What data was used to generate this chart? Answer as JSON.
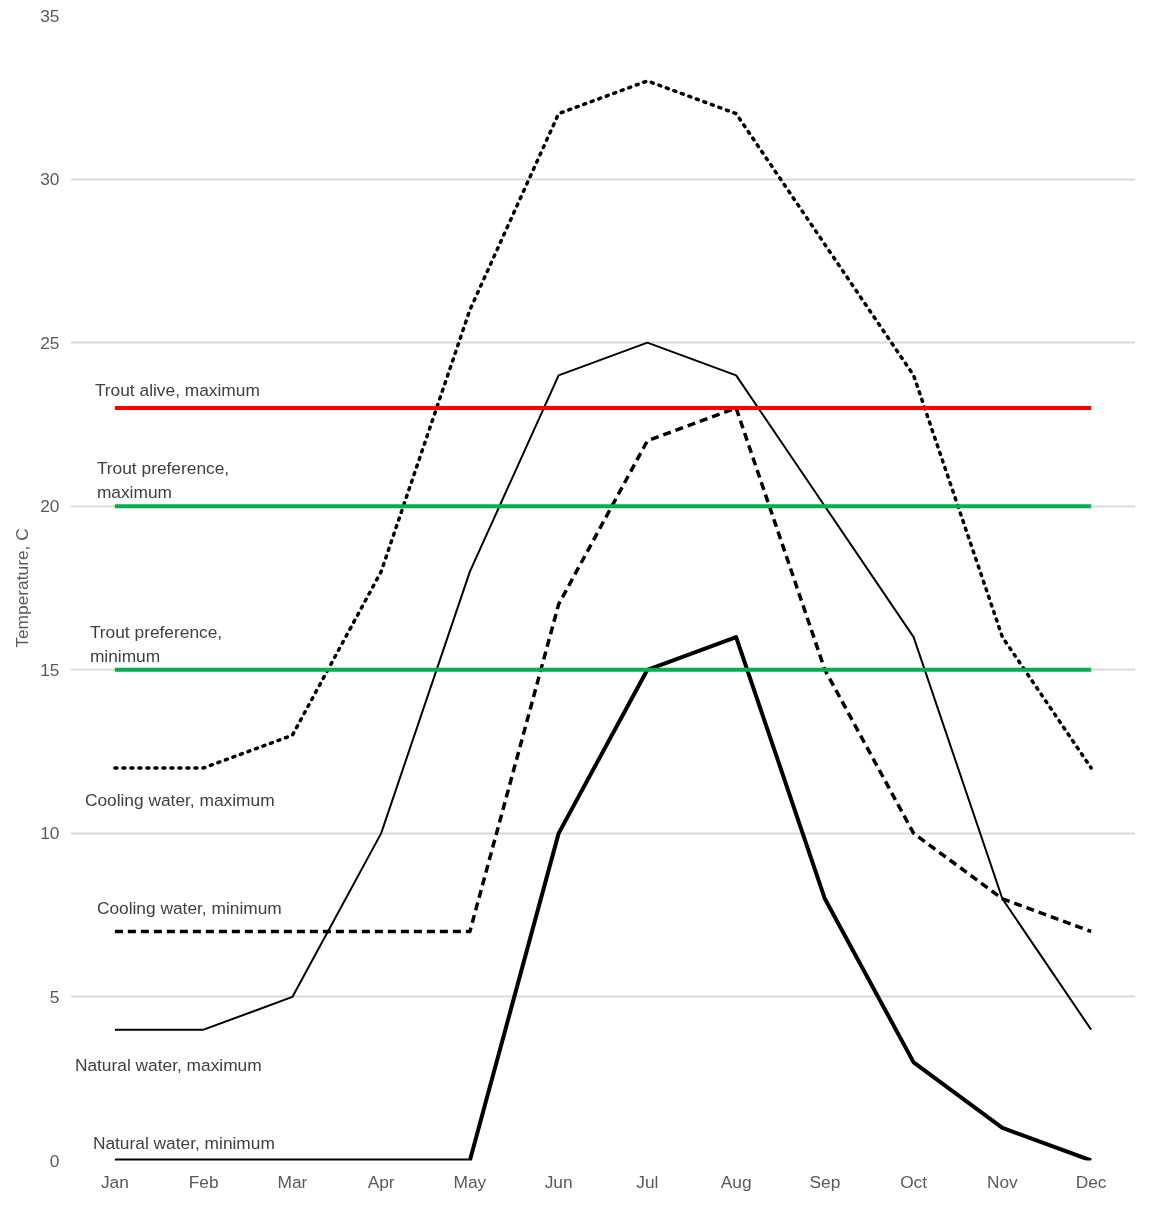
{
  "chart_data": {
    "type": "line",
    "ylabel": "Temperature, C",
    "categories": [
      "Jan",
      "Feb",
      "Mar",
      "Apr",
      "May",
      "Jun",
      "Jul",
      "Aug",
      "Sep",
      "Oct",
      "Nov",
      "Dec"
    ],
    "ylim": [
      0,
      35
    ],
    "yticks": [
      0,
      5,
      10,
      15,
      20,
      25,
      30,
      35
    ],
    "grid": "y",
    "series": [
      {
        "name": "Cooling water, maximum",
        "color": "#000000",
        "line_style": "dotted",
        "values": [
          12,
          12,
          13,
          18,
          26,
          32,
          33,
          32,
          28,
          24,
          16,
          12
        ]
      },
      {
        "name": "Natural water, maximum",
        "color": "#000000",
        "line_style": "solid",
        "values": [
          4,
          4,
          5,
          10,
          18,
          24,
          25,
          24,
          20,
          16,
          8,
          4
        ]
      },
      {
        "name": "Cooling water, minimum",
        "color": "#000000",
        "line_style": "dashed",
        "values": [
          7,
          7,
          7,
          7,
          7,
          17,
          22,
          23,
          15,
          10,
          8,
          7
        ]
      },
      {
        "name": "Natural water, minimum",
        "color": "#000000",
        "line_style": "solid",
        "values": [
          0,
          0,
          0,
          0,
          0,
          10,
          15,
          16,
          8,
          3,
          1,
          0
        ]
      },
      {
        "name": "Trout alive, maximum",
        "color": "#ff0000",
        "line_style": "solid",
        "values": [
          23,
          23,
          23,
          23,
          23,
          23,
          23,
          23,
          23,
          23,
          23,
          23
        ]
      },
      {
        "name": "Trout preference,\nmaximum",
        "color": "#00b050",
        "line_style": "solid",
        "values": [
          20,
          20,
          20,
          20,
          20,
          20,
          20,
          20,
          20,
          20,
          20,
          20
        ]
      },
      {
        "name": "Trout preference,\nminimum",
        "color": "#00b050",
        "line_style": "solid",
        "values": [
          15,
          15,
          15,
          15,
          15,
          15,
          15,
          15,
          15,
          15,
          15,
          15
        ]
      }
    ]
  }
}
